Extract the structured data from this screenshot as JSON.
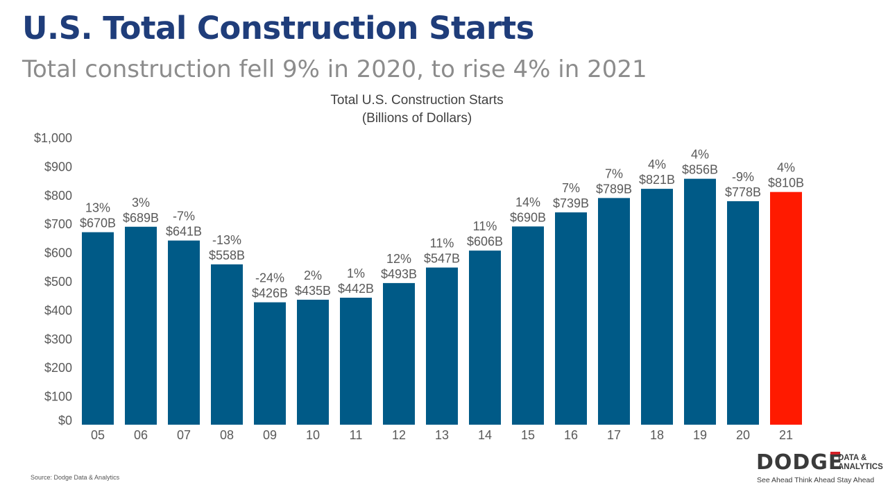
{
  "header": {
    "title": "U.S. Total Construction Starts",
    "subtitle": "Total construction fell 9% in 2020, to rise 4% in 2021"
  },
  "chart_data": {
    "type": "bar",
    "title": "Total U.S. Construction Starts",
    "subtitle": "(Billions of Dollars)",
    "xlabel": "",
    "ylabel": "",
    "ylim": [
      0,
      1000
    ],
    "yticks": [
      "$0",
      "$100",
      "$200",
      "$300",
      "$400",
      "$500",
      "$600",
      "$700",
      "$800",
      "$900",
      "$1,000"
    ],
    "grid": false,
    "categories": [
      "05",
      "06",
      "07",
      "08",
      "09",
      "10",
      "11",
      "12",
      "13",
      "14",
      "15",
      "16",
      "17",
      "18",
      "19",
      "20",
      "21"
    ],
    "values": [
      670,
      689,
      641,
      558,
      426,
      435,
      442,
      493,
      547,
      606,
      690,
      739,
      789,
      821,
      856,
      778,
      810
    ],
    "value_labels": [
      "$670B",
      "$689B",
      "$641B",
      "$558B",
      "$426B",
      "$435B",
      "$442B",
      "$493B",
      "$547B",
      "$606B",
      "$690B",
      "$739B",
      "$789B",
      "$821B",
      "$856B",
      "$778B",
      "$810B"
    ],
    "pct_labels": [
      "13%",
      "3%",
      "-7%",
      "-13%",
      "-24%",
      "2%",
      "1%",
      "12%",
      "11%",
      "11%",
      "14%",
      "7%",
      "7%",
      "4%",
      "4%",
      "-9%",
      "4%"
    ],
    "colors": {
      "bar": "#005a87",
      "highlight": "#ff1a00",
      "label": "#595959",
      "axis_text": "#595959"
    },
    "highlight_category": "21"
  },
  "footer": {
    "source": "Source: Dodge Data & Analytics",
    "logo_main": "DODGE",
    "logo_side": "DATA & ANALYTICS",
    "logo_tagline": "See Ahead  Think Ahead  Stay Ahead"
  }
}
